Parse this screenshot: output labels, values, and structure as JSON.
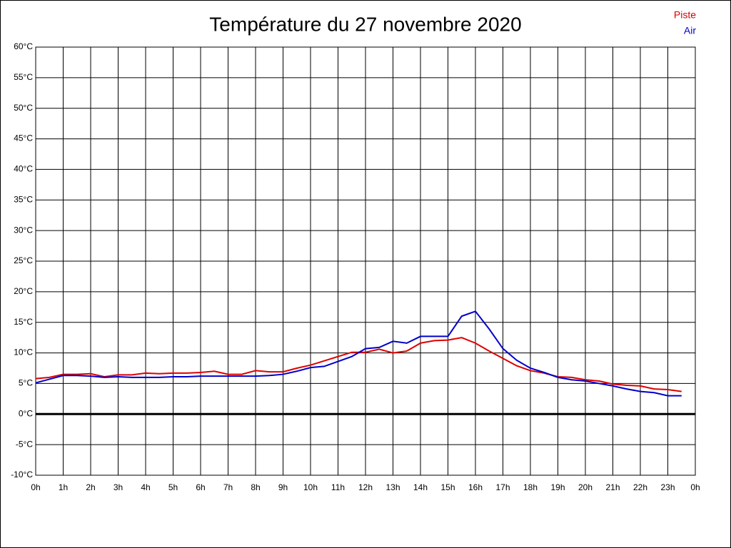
{
  "chart_data": {
    "type": "line",
    "title": "Température du 27 novembre 2020",
    "x": [
      0,
      0.5,
      1,
      1.5,
      2,
      2.5,
      3,
      3.5,
      4,
      4.5,
      5,
      5.5,
      6,
      6.5,
      7,
      7.5,
      8,
      8.5,
      9,
      9.5,
      10,
      10.5,
      11,
      11.5,
      12,
      12.5,
      13,
      13.5,
      14,
      14.5,
      15,
      15.5,
      16,
      16.5,
      17,
      17.5,
      18,
      18.5,
      19,
      19.5,
      20,
      20.5,
      21,
      21.5,
      22,
      22.5,
      23,
      23.5
    ],
    "series": [
      {
        "name": "Piste",
        "color": "#dd0000",
        "values": [
          5.8,
          6.0,
          6.5,
          6.5,
          6.6,
          6.1,
          6.4,
          6.4,
          6.7,
          6.6,
          6.7,
          6.7,
          6.8,
          7.0,
          6.5,
          6.5,
          7.1,
          6.9,
          6.9,
          7.5,
          8.0,
          8.7,
          9.4,
          10.1,
          10.1,
          10.6,
          10.0,
          10.3,
          11.6,
          12.0,
          12.1,
          12.5,
          11.6,
          10.3,
          9.1,
          7.9,
          7.1,
          6.7,
          6.1,
          6.0,
          5.6,
          5.4,
          4.9,
          4.7,
          4.6,
          4.1,
          4.0,
          3.7
        ]
      },
      {
        "name": "Air",
        "color": "#0000cc",
        "values": [
          5.1,
          5.7,
          6.3,
          6.3,
          6.2,
          6.0,
          6.1,
          6.0,
          6.0,
          6.0,
          6.1,
          6.1,
          6.2,
          6.2,
          6.2,
          6.2,
          6.2,
          6.3,
          6.5,
          7.0,
          7.6,
          7.8,
          8.6,
          9.4,
          10.7,
          10.9,
          11.9,
          11.6,
          12.7,
          12.7,
          12.7,
          16.0,
          16.8,
          13.9,
          10.7,
          8.8,
          7.5,
          6.8,
          6.0,
          5.6,
          5.4,
          5.0,
          4.6,
          4.1,
          3.7,
          3.5,
          3.0,
          3.0
        ]
      }
    ],
    "xlim": [
      0,
      24
    ],
    "xticks": [
      {
        "value": 0,
        "label": "0h"
      },
      {
        "value": 1,
        "label": "1h"
      },
      {
        "value": 2,
        "label": "2h"
      },
      {
        "value": 3,
        "label": "3h"
      },
      {
        "value": 4,
        "label": "4h"
      },
      {
        "value": 5,
        "label": "5h"
      },
      {
        "value": 6,
        "label": "6h"
      },
      {
        "value": 7,
        "label": "7h"
      },
      {
        "value": 8,
        "label": "8h"
      },
      {
        "value": 9,
        "label": "9h"
      },
      {
        "value": 10,
        "label": "10h"
      },
      {
        "value": 11,
        "label": "11h"
      },
      {
        "value": 12,
        "label": "12h"
      },
      {
        "value": 13,
        "label": "13h"
      },
      {
        "value": 14,
        "label": "14h"
      },
      {
        "value": 15,
        "label": "15h"
      },
      {
        "value": 16,
        "label": "16h"
      },
      {
        "value": 17,
        "label": "17h"
      },
      {
        "value": 18,
        "label": "18h"
      },
      {
        "value": 19,
        "label": "19h"
      },
      {
        "value": 20,
        "label": "20h"
      },
      {
        "value": 21,
        "label": "21h"
      },
      {
        "value": 22,
        "label": "22h"
      },
      {
        "value": 23,
        "label": "23h"
      },
      {
        "value": 24,
        "label": "0h"
      }
    ],
    "ylim": [
      -10,
      60
    ],
    "yticks": [
      {
        "value": -10,
        "label": "-10°C"
      },
      {
        "value": -5,
        "label": "-5°C"
      },
      {
        "value": 0,
        "label": "0°C"
      },
      {
        "value": 5,
        "label": "5°C"
      },
      {
        "value": 10,
        "label": "10°C"
      },
      {
        "value": 15,
        "label": "15°C"
      },
      {
        "value": 20,
        "label": "20°C"
      },
      {
        "value": 25,
        "label": "25°C"
      },
      {
        "value": 30,
        "label": "30°C"
      },
      {
        "value": 35,
        "label": "35°C"
      },
      {
        "value": 40,
        "label": "40°C"
      },
      {
        "value": 45,
        "label": "45°C"
      },
      {
        "value": 50,
        "label": "50°C"
      },
      {
        "value": 55,
        "label": "55°C"
      },
      {
        "value": 60,
        "label": "60°C"
      }
    ],
    "grid": true,
    "legend": "upper right"
  }
}
